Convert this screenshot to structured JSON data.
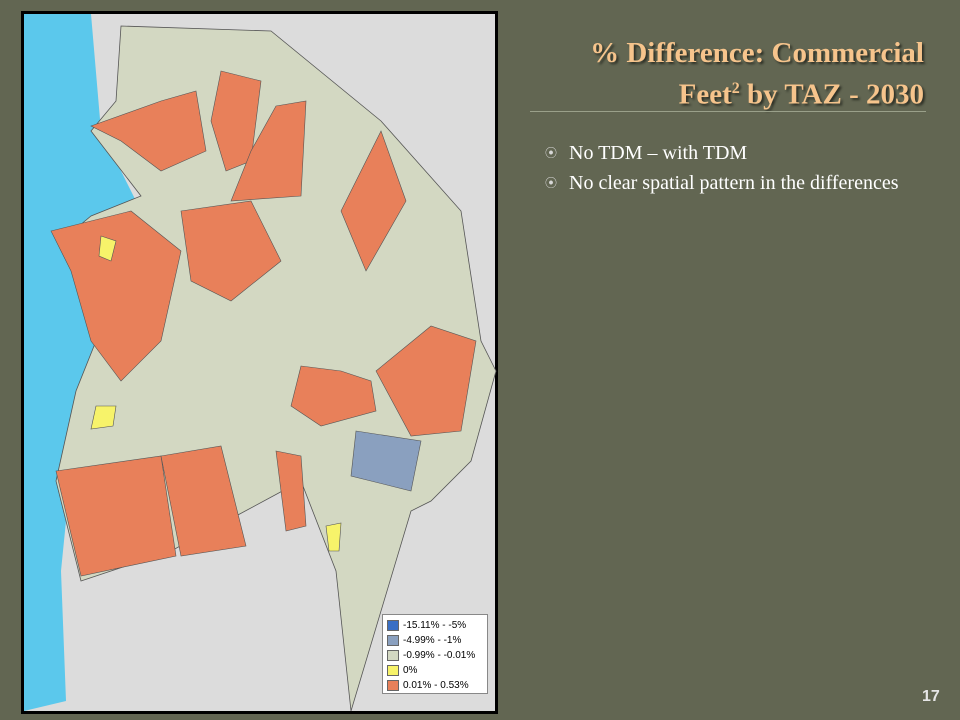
{
  "title": {
    "line1": "% Difference: Commercial",
    "line2_start": "Feet",
    "superscript": "2",
    "line2_end": " by TAZ - 2030"
  },
  "bullets": [
    "No TDM – with TDM",
    "No clear spatial pattern in the differences"
  ],
  "legend": [
    {
      "label": "-15.11% - -5%",
      "color": "#3a6fc4"
    },
    {
      "label": "-4.99% - -1%",
      "color": "#8aa0bf"
    },
    {
      "label": "-0.99% - -0.01%",
      "color": "#d3d8c2"
    },
    {
      "label": "0%",
      "color": "#f7f36a"
    },
    {
      "label": "0.01% - 0.53%",
      "color": "#e8805a"
    }
  ],
  "slide_number": "17"
}
